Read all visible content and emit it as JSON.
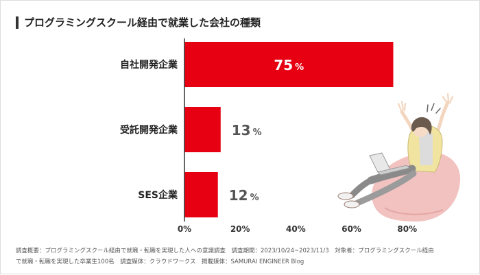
{
  "title": "プログラミングスクール経由で就業した会社の種類",
  "footnote": {
    "line1": "調査概要：プログラミングスクール経由で就職・転職を実現した人への意識調査　調査期間：2023/10/24~2023/11/3　対象者：プログラミングスクール経由",
    "line2": "で就職・転職を実現した卒業生100名　調査媒体：クラウドワークス　掲載媒体：SAMURAI ENGINEER Blog"
  },
  "colors": {
    "bar": "#e60012",
    "inside_label": "#ffffff",
    "outside_label": "#555555",
    "axis": "#333333"
  },
  "illustration": {
    "name": "person-on-beanbag-with-laptop"
  },
  "chart_data": {
    "type": "bar",
    "orientation": "horizontal",
    "categories": [
      "自社開発企業",
      "受託開発企業",
      "SES企業"
    ],
    "values": [
      75,
      13,
      12
    ],
    "value_suffix": "%",
    "xlim": [
      0,
      80
    ],
    "xticks": [
      0,
      20,
      40,
      60,
      80
    ],
    "xtick_labels": [
      "0%",
      "20%",
      "40%",
      "60%",
      "80%"
    ],
    "grid": false,
    "legend": "none"
  }
}
